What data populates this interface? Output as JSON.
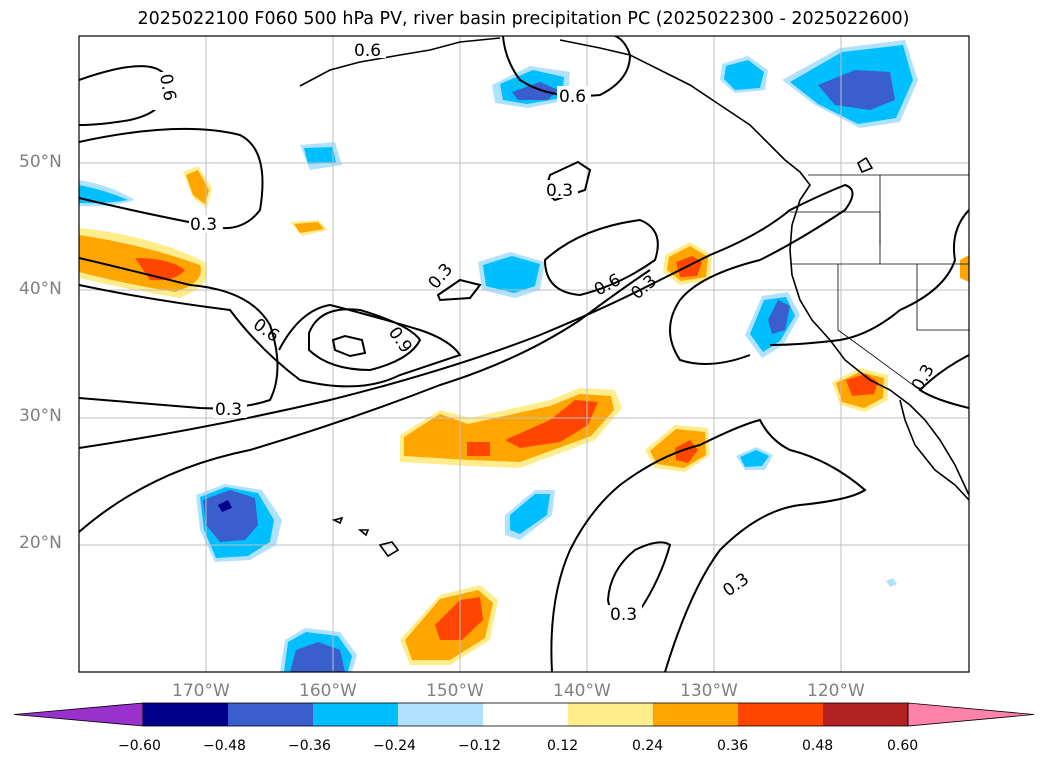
{
  "title": "2025022100 F060 500 hPa PV, river basin precipitation PC (2025022300 - 2025022600)",
  "lat_labels": [
    "50°N",
    "40°N",
    "30°N",
    "20°N"
  ],
  "lon_labels": [
    "170°W",
    "160°W",
    "150°W",
    "140°W",
    "130°W",
    "120°W"
  ],
  "contour_labels": [
    "0.6",
    "0.6",
    "0.6",
    "0.3",
    "0.3",
    "0.3",
    "0.6",
    "0.9",
    "0.3",
    "0.6",
    "0.3",
    "0.3",
    "0.3",
    "0.3"
  ],
  "colorbar": {
    "ticks": [
      "−0.60",
      "−0.48",
      "−0.36",
      "−0.24",
      "−0.12",
      "0.12",
      "0.24",
      "0.36",
      "0.48",
      "0.60"
    ],
    "colors": [
      "#9932cc",
      "#00008b",
      "#3a5fcd",
      "#00bfff",
      "#b0e2ff",
      "#ffffff",
      "#ffec8b",
      "#ffa500",
      "#ff4500",
      "#b22222",
      "#ff82ab"
    ]
  },
  "map": {
    "extent": {
      "lon": [
        -180,
        -110
      ],
      "lat": [
        10,
        60
      ]
    },
    "gridlines": true,
    "coastlines": true,
    "state_borders": true
  }
}
